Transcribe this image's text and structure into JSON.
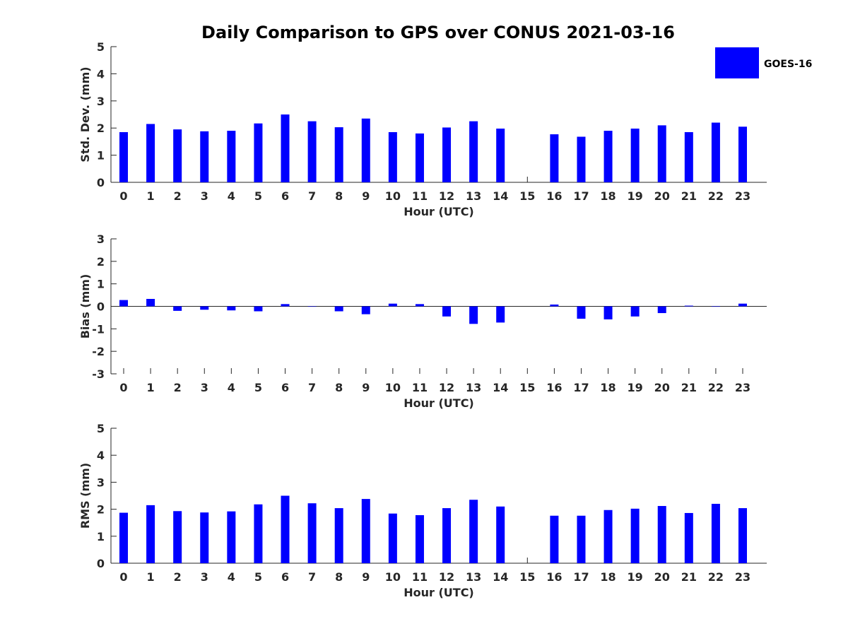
{
  "chart_data": {
    "title": "Daily Comparison to GPS over CONUS 2021-03-16",
    "legend": {
      "label": "GOES-16",
      "color": "#0000ff",
      "placement": "top-right"
    },
    "bar_color": "#0000ff",
    "categories": [
      "0",
      "1",
      "2",
      "3",
      "4",
      "5",
      "6",
      "7",
      "8",
      "9",
      "10",
      "11",
      "12",
      "13",
      "14",
      "15",
      "16",
      "17",
      "18",
      "19",
      "20",
      "21",
      "22",
      "23"
    ],
    "panels": [
      {
        "type": "bar",
        "xlabel": "Hour (UTC)",
        "ylabel": "Std. Dev. (mm)",
        "ylim": [
          0,
          5
        ],
        "yticks": [
          0,
          1,
          2,
          3,
          4,
          5
        ],
        "series": [
          {
            "name": "GOES-16",
            "values": [
              1.85,
              2.15,
              1.95,
              1.88,
              1.9,
              2.17,
              2.5,
              2.25,
              2.03,
              2.35,
              1.85,
              1.8,
              2.02,
              2.25,
              1.98,
              null,
              1.77,
              1.68,
              1.9,
              1.98,
              2.1,
              1.85,
              2.2,
              2.05
            ]
          }
        ]
      },
      {
        "type": "bar",
        "xlabel": "Hour (UTC)",
        "ylabel": "Bias (mm)",
        "ylim": [
          -3,
          3
        ],
        "yticks": [
          -3,
          -2,
          -1,
          0,
          1,
          2,
          3
        ],
        "series": [
          {
            "name": "GOES-16",
            "values": [
              0.28,
              0.33,
              -0.2,
              -0.15,
              -0.18,
              -0.22,
              0.1,
              0.0,
              -0.22,
              -0.35,
              0.12,
              0.1,
              -0.45,
              -0.78,
              -0.72,
              null,
              0.08,
              -0.55,
              -0.58,
              -0.45,
              -0.3,
              0.03,
              0.0,
              0.12
            ]
          }
        ]
      },
      {
        "type": "bar",
        "xlabel": "Hour (UTC)",
        "ylabel": "RMS (mm)",
        "ylim": [
          0,
          5
        ],
        "yticks": [
          0,
          1,
          2,
          3,
          4,
          5
        ],
        "series": [
          {
            "name": "GOES-16",
            "values": [
              1.87,
              2.15,
              1.93,
              1.88,
              1.92,
              2.18,
              2.5,
              2.22,
              2.04,
              2.38,
              1.84,
              1.78,
              2.04,
              2.35,
              2.1,
              null,
              1.76,
              1.76,
              1.97,
              2.02,
              2.12,
              1.86,
              2.2,
              2.04
            ]
          }
        ]
      }
    ]
  }
}
